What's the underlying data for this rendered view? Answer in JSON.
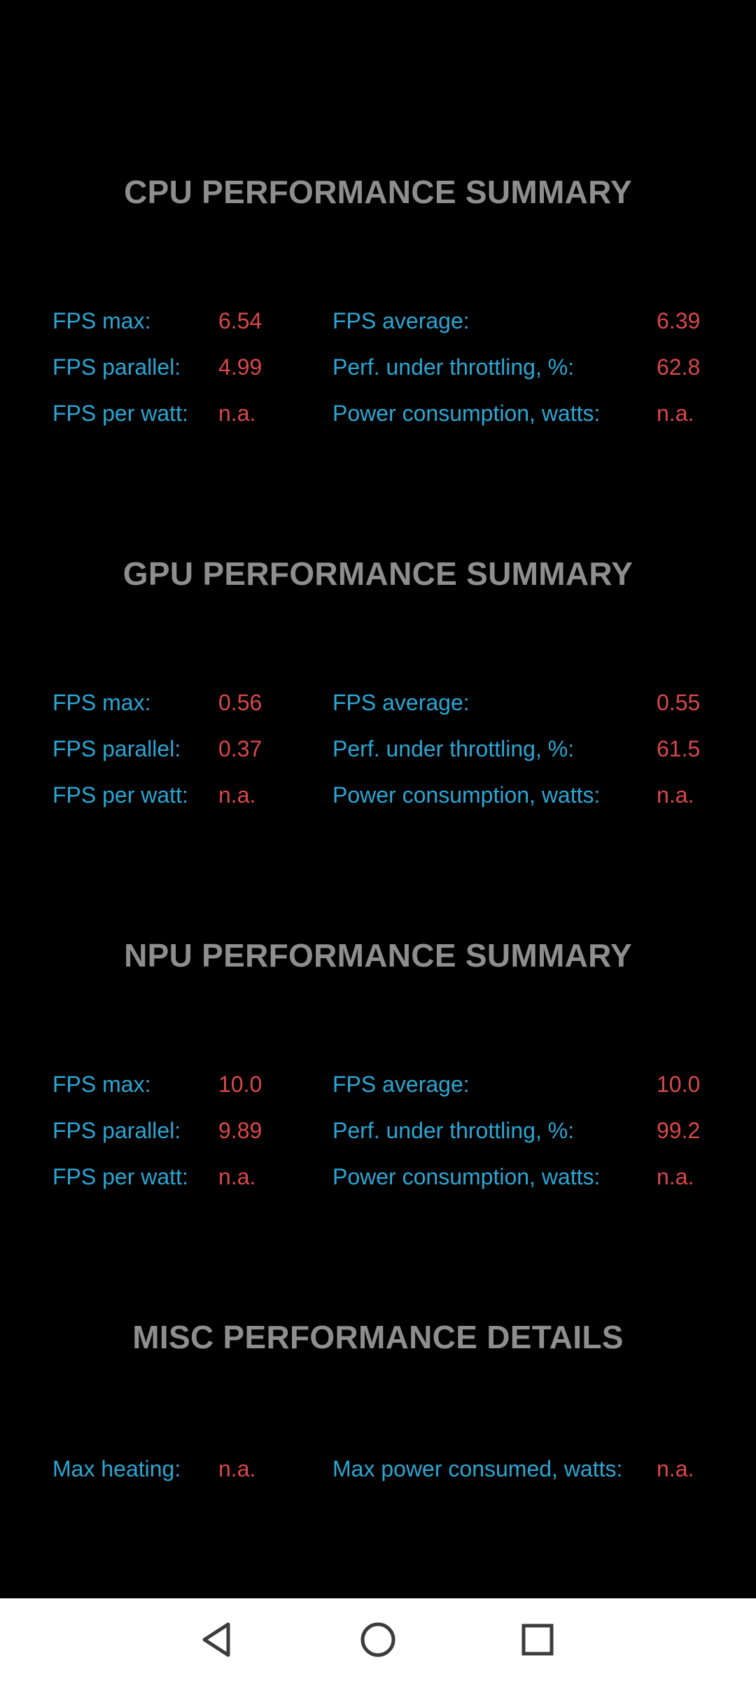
{
  "sections": [
    {
      "title": "CPU PERFORMANCE SUMMARY",
      "rows": [
        {
          "label1": "FPS max:",
          "value1": "6.54",
          "label2": "FPS average:",
          "value2": "6.39"
        },
        {
          "label1": "FPS parallel:",
          "value1": "4.99",
          "label2": "Perf. under throttling, %:",
          "value2": "62.8"
        },
        {
          "label1": "FPS per watt:",
          "value1": "n.a.",
          "label2": "Power consumption, watts:",
          "value2": "n.a."
        }
      ]
    },
    {
      "title": "GPU PERFORMANCE SUMMARY",
      "rows": [
        {
          "label1": "FPS max:",
          "value1": "0.56",
          "label2": "FPS average:",
          "value2": "0.55"
        },
        {
          "label1": "FPS parallel:",
          "value1": "0.37",
          "label2": "Perf. under throttling, %:",
          "value2": "61.5"
        },
        {
          "label1": "FPS per watt:",
          "value1": "n.a.",
          "label2": "Power consumption, watts:",
          "value2": "n.a."
        }
      ]
    },
    {
      "title": "NPU PERFORMANCE SUMMARY",
      "rows": [
        {
          "label1": "FPS max:",
          "value1": "10.0",
          "label2": "FPS average:",
          "value2": "10.0"
        },
        {
          "label1": "FPS parallel:",
          "value1": "9.89",
          "label2": "Perf. under throttling, %:",
          "value2": "99.2"
        },
        {
          "label1": "FPS per watt:",
          "value1": "n.a.",
          "label2": "Power consumption, watts:",
          "value2": "n.a."
        }
      ]
    },
    {
      "title": "MISC PERFORMANCE DETAILS",
      "rows": [
        {
          "label1": "Max heating:",
          "value1": "n.a.",
          "label2": "Max power consumed, watts:",
          "value2": "n.a."
        }
      ]
    }
  ],
  "navbar": {
    "back_icon": "back-triangle-icon",
    "home_icon": "home-circle-icon",
    "recents_icon": "recents-square-icon"
  },
  "colors": {
    "background": "#000000",
    "title": "#8e8e8e",
    "label": "#2ba6d4",
    "value": "#d9474a",
    "navbar": "#ffffff"
  }
}
